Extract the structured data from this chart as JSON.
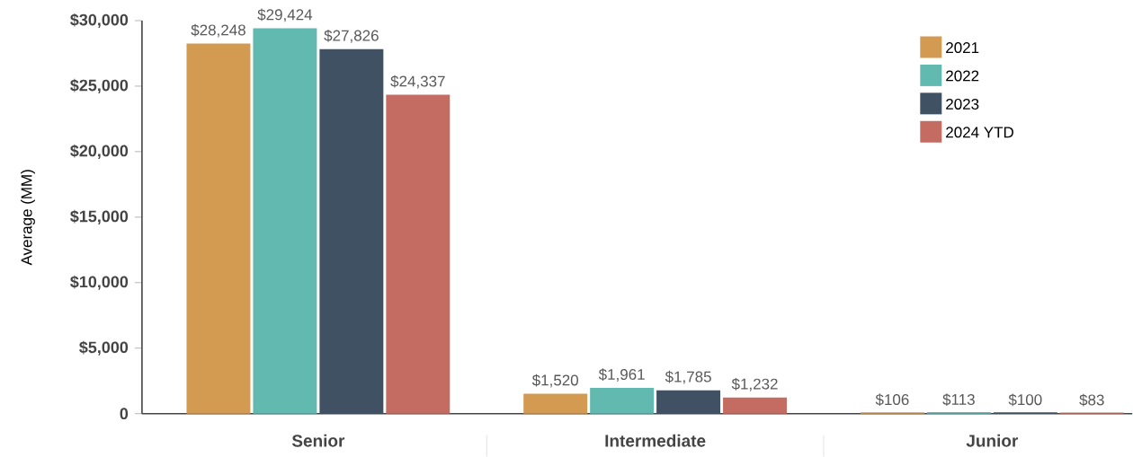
{
  "chart_data": {
    "type": "bar",
    "ylabel": "Average (MM)",
    "categories": [
      "Senior",
      "Intermediate",
      "Junior"
    ],
    "ylim": [
      0,
      30000
    ],
    "yticks": [
      0,
      {
        "value": 5000,
        "label": "$5,000"
      },
      {
        "value": 10000,
        "label": "$10,000"
      },
      {
        "value": 15000,
        "label": "$15,000"
      },
      {
        "value": 20000,
        "label": "$20,000"
      },
      {
        "value": 25000,
        "label": "$25,000"
      },
      {
        "value": 30000,
        "label": "$30,000"
      }
    ],
    "legend": "top right",
    "series": [
      {
        "name": "2021",
        "color": "#d39a52",
        "values": [
          28248,
          1520,
          106
        ],
        "value_labels": [
          "$28,248",
          "$1,520",
          "$106"
        ]
      },
      {
        "name": "2022",
        "color": "#62b9b0",
        "values": [
          29424,
          1961,
          113
        ],
        "value_labels": [
          "$29,424",
          "$1,961",
          "$113"
        ]
      },
      {
        "name": "2023",
        "color": "#3f5163",
        "values": [
          27826,
          1785,
          100
        ],
        "value_labels": [
          "$27,826",
          "$1,785",
          "$100"
        ]
      },
      {
        "name": "2024 YTD",
        "color": "#c46c62",
        "values": [
          24337,
          1232,
          83
        ],
        "value_labels": [
          "$24,337",
          "$1,232",
          "$83"
        ]
      }
    ]
  }
}
